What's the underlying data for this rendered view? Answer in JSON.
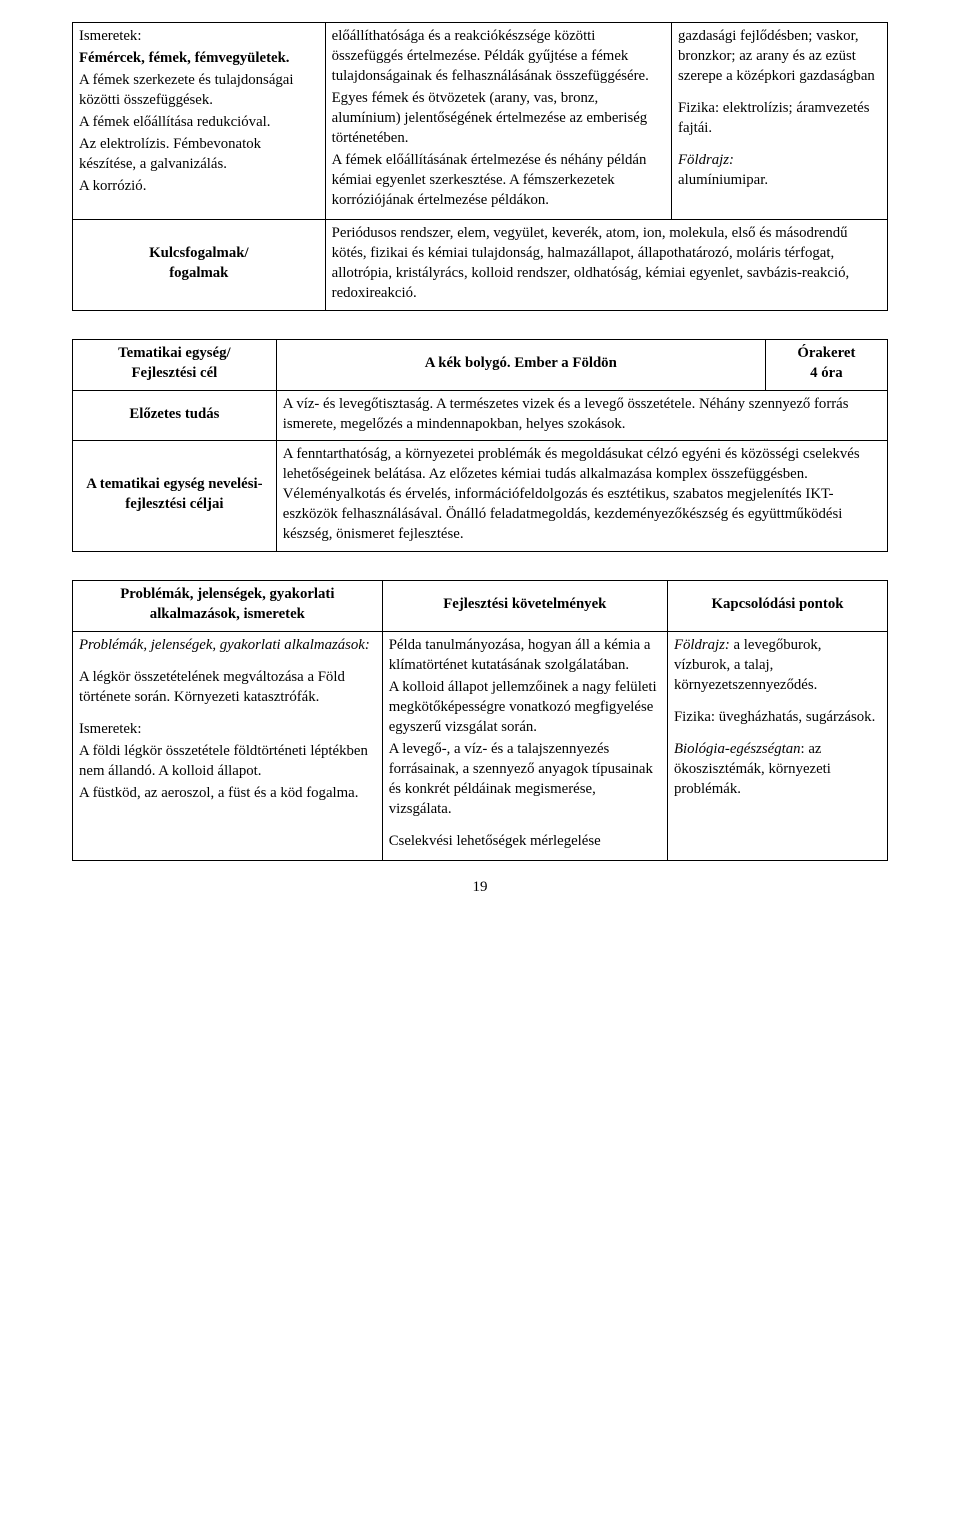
{
  "table1": {
    "col1": {
      "heading": "Ismeretek:",
      "line1_bold": "Fémércek, fémek, fémvegyületek.",
      "line2": "A fémek szerkezete és tulajdonságai közötti összefüggések.",
      "line3": "A fémek előállítása redukcióval.",
      "line4": "Az elektrolízis. Fémbevonatok készítése, a galvanizálás.",
      "line5": "A korrózió."
    },
    "col2": {
      "p1": "előállíthatósága és a reakciókészsége közötti összefüggés értelmezése. Példák gyűjtése a fémek tulajdonságainak és felhasználásának összefüggésére.",
      "p2": "Egyes fémek és ötvözetek (arany, vas, bronz, alumínium) jelentőségének értelmezése az emberiség történetében.",
      "p3": "A fémek előállításának értelmezése és néhány példán kémiai egyenlet szerkesztése. A fémszerkezetek korróziójának értelmezése példákon."
    },
    "col3": {
      "p1": "gazdasági fejlődésben; vaskor, bronzkor; az arany és az ezüst szerepe a középkori gazdaságban",
      "p2": "Fizika: elektrolízis; áramvezetés fajtái.",
      "p3_it1": "Földrajz:",
      "p3_it2": "alumíniumipar."
    },
    "row2_left": "Kulcsfogalmak/\nfogalmak",
    "row2_right": "Periódusos rendszer, elem, vegyület, keverék, atom, ion, molekula, első és másodrendű kötés, fizikai és kémiai tulajdonság, halmazállapot, állapothatározó, moláris térfogat, allotrópia, kristályrács, kolloid rendszer, oldhatóság, kémiai egyenlet, savbázis-reakció, redoxireakció."
  },
  "table2": {
    "r1c1": "Tematikai egység/\nFejlesztési cél",
    "r1c2": "A kék bolygó. Ember a Földön",
    "r1c3": "Órakeret\n4 óra",
    "r2c1": "Előzetes tudás",
    "r2c2": "A víz- és levegőtisztaság. A természetes vizek és a levegő összetétele. Néhány szennyező forrás ismerete, megelőzés a mindennapokban, helyes szokások.",
    "r3c1": "A tematikai egység nevelési-fejlesztési céljai",
    "r3c2": "A fenntarthatóság, a környezetei problémák és megoldásukat célzó egyéni és közösségi cselekvés lehetőségeinek belátása. Az előzetes kémiai tudás alkalmazása komplex összefüggésben.\nVéleményalkotás és érvelés, információfeldolgozás és esztétikus, szabatos megjelenítés IKT-eszközök felhasználásával. Önálló feladatmegoldás, kezdeményezőkészség és együttműködési készség, önismeret fejlesztése."
  },
  "table3": {
    "h1": "Problémák, jelenségek, gyakorlati alkalmazások, ismeretek",
    "h2": "Fejlesztési követelmények",
    "h3": "Kapcsolódási pontok",
    "c1_italic": "Problémák, jelenségek, gyakorlati alkalmazások:",
    "c1_p1": "A légkör összetételének megváltozása a Föld története során. Környezeti katasztrófák.",
    "c1_heading": "Ismeretek:",
    "c1_p2": "A földi légkör összetétele földtörténeti léptékben nem állandó. A kolloid állapot.",
    "c1_p3": "A füstköd, az aeroszol, a füst és a köd fogalma.",
    "c2_p1": "Példa tanulmányozása, hogyan áll a kémia a klímatörténet kutatásának szolgálatában.",
    "c2_p2": "A kolloid állapot jellemzőinek a nagy felületi megkötőképességre vonatkozó megfigyelése egyszerű vizsgálat során.",
    "c2_p3": "A levegő-, a víz- és a talajszennyezés forrásainak, a szennyező anyagok típusainak és konkrét példáinak megismerése, vizsgálata.",
    "c2_p4": "Cselekvési lehetőségek mérlegelése",
    "c3_l1_it": "Földrajz:",
    "c3_l1_tx": " a levegőburok, vízburok, a talaj, környezetszennyeződés.",
    "c3_l2": "Fizika: üvegházhatás, sugárzások.",
    "c3_l3_it": "Biológia-egészségtan",
    "c3_l3_tx": ": az ökoszisztémák, környezeti problémák."
  },
  "page_number": "19"
}
